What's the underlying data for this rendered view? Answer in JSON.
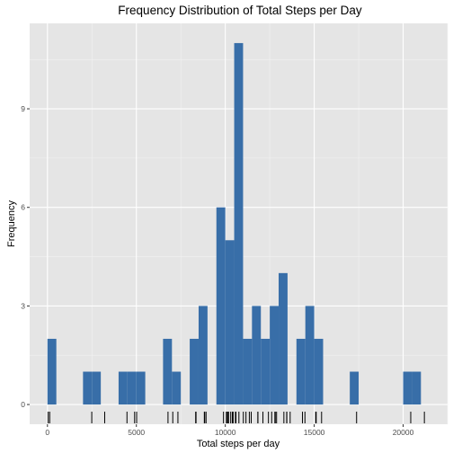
{
  "chart_data": {
    "type": "bar",
    "title": "Frequency Distribution of Total Steps per Day",
    "xlabel": "Total steps per day",
    "ylabel": "Frequency",
    "xlim": [
      -1000,
      22500
    ],
    "ylim": [
      -0.6,
      11.6
    ],
    "x_ticks": [
      0,
      5000,
      10000,
      15000,
      20000
    ],
    "x_tick_labels": [
      "0",
      "5000",
      "10000",
      "15000",
      "20000"
    ],
    "y_ticks": [
      0,
      3,
      6,
      9
    ],
    "y_tick_labels": [
      "0",
      "3",
      "6",
      "9"
    ],
    "bin_width": 500,
    "grid": true,
    "bar_color": "#386EA8",
    "panel_color": "#E5E5E5",
    "bins_start": [
      0,
      2000,
      2500,
      4000,
      4500,
      5000,
      6500,
      7000,
      8000,
      8500,
      9500,
      10000,
      10500,
      11000,
      11500,
      12000,
      12500,
      13000,
      13500,
      14000,
      14500,
      15000,
      17000,
      20000,
      20500
    ],
    "counts": [
      2,
      1,
      1,
      1,
      1,
      1,
      2,
      1,
      2,
      3,
      6,
      5,
      11,
      2,
      3,
      2,
      3,
      4,
      0,
      2,
      3,
      2,
      1,
      1,
      1
    ],
    "rug": [
      41,
      126,
      2492,
      3219,
      4472,
      4902,
      5015,
      6778,
      7047,
      7336,
      8334,
      8355,
      8821,
      8841,
      8918,
      9900,
      10056,
      10119,
      10139,
      10183,
      10304,
      10395,
      10439,
      10571,
      10600,
      10765,
      11015,
      11162,
      11352,
      11458,
      11829,
      11834,
      12116,
      12426,
      12608,
      12787,
      12811,
      12883,
      13294,
      13452,
      13460,
      13646,
      14339,
      14478,
      15084,
      15098,
      15110,
      15414,
      17382,
      20427,
      21194
    ]
  }
}
